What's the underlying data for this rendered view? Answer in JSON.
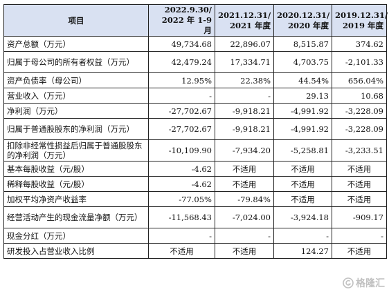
{
  "table": {
    "headers": [
      {
        "line1": "项目",
        "line2": ""
      },
      {
        "line1": "2022.9.30/",
        "line2": "2022 年 1-9 月"
      },
      {
        "line1": "2021.12.31/",
        "line2": "2021 年度"
      },
      {
        "line1": "2020.12.31/",
        "line2": "2020 年度"
      },
      {
        "line1": "2019.12.31/",
        "line2": "2019 年度"
      }
    ],
    "rows": [
      {
        "label": "资产总额（万元）",
        "values": [
          "49,734.68",
          "22,896.07",
          "8,515.87",
          "374.62"
        ]
      },
      {
        "label": "归属于母公司的所有者权益（万元）",
        "values": [
          "42,479.24",
          "17,334.71",
          "4,703.75",
          "-2,101.33"
        ]
      },
      {
        "label": "资产负债率（母公司）",
        "values": [
          "12.95%",
          "22.38%",
          "44.54%",
          "656.04%"
        ]
      },
      {
        "label": "营业收入（万元）",
        "values": [
          "-",
          "-",
          "29.13",
          "10.68"
        ]
      },
      {
        "label": "净利润（万元）",
        "values": [
          "-27,702.67",
          "-9,918.21",
          "-4,991.92",
          "-3,228.09"
        ]
      },
      {
        "label": "归属于普通股股东的净利润（万元）",
        "values": [
          "-27,702.67",
          "-9,918.21",
          "-4,991.92",
          "-3,228.09"
        ]
      },
      {
        "label": "扣除非经常性损益后归属于普通股股东的净利润（万元）",
        "values": [
          "-10,109.90",
          "-7,934.20",
          "-5,258.81",
          "-3,233.51"
        ]
      },
      {
        "label": "基本每股收益（元/股）",
        "values": [
          "-4.62",
          "不适用",
          "不适用",
          "不适用"
        ]
      },
      {
        "label": "稀释每股收益（元/股）",
        "values": [
          "-4.62",
          "不适用",
          "不适用",
          "不适用"
        ]
      },
      {
        "label": "加权平均净资产收益率",
        "values": [
          "-77.05%",
          "-79.84%",
          "不适用",
          "不适用"
        ]
      },
      {
        "label": "经营活动产生的现金流量净额（万元）",
        "values": [
          "-11,568.43",
          "-7,024.00",
          "-3,924.18",
          "-909.17"
        ]
      },
      {
        "label": "现金分红（万元）",
        "values": [
          "-",
          "-",
          "-",
          "-"
        ]
      },
      {
        "label": "研发投入占营业收入比例",
        "values": [
          "不适用",
          "不适用",
          "124.27",
          "不适用"
        ]
      }
    ]
  },
  "watermark": {
    "text": "格隆汇",
    "icon": "gelonghui-logo-icon"
  }
}
